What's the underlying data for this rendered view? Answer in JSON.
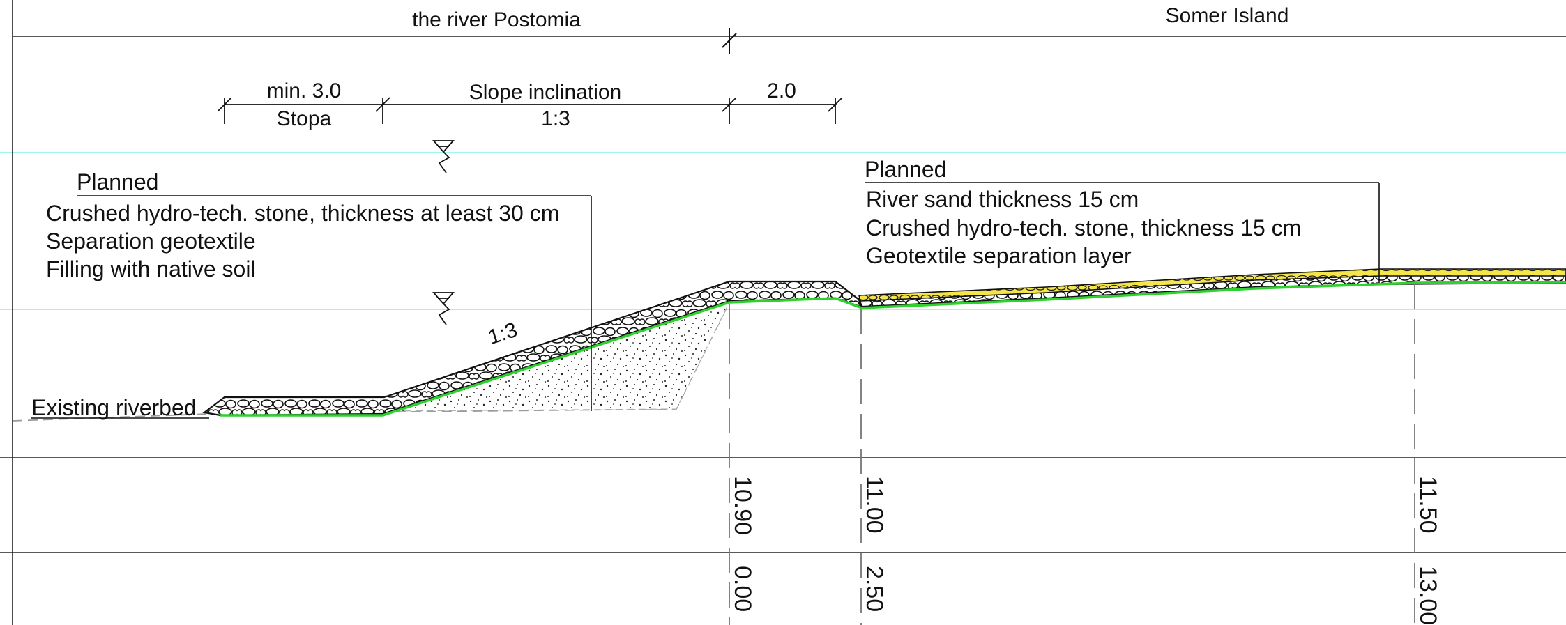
{
  "header": {
    "left_title": "the river Postomia",
    "right_title": "Somer Island"
  },
  "dimensions": {
    "berm_width": "min. 3.0",
    "berm_label": "Stopa",
    "slope_label": "Slope inclination",
    "slope_ratio": "1:3",
    "crest_width": "2.0"
  },
  "slope_annotation": "1:3",
  "left_callout": {
    "title": "Planned",
    "lines": [
      "Crushed hydro-tech. stone, thickness at least 30 cm",
      "Separation geotextile",
      "Filling with native soil"
    ]
  },
  "right_callout": {
    "title": "Planned",
    "lines": [
      "River sand thickness 15 cm",
      "Crushed hydro-tech. stone, thickness 15 cm",
      "Geotextile separation layer"
    ]
  },
  "existing_label": "Existing riverbed",
  "stations": {
    "elevations": [
      "10.90",
      "11.00",
      "11.50"
    ],
    "distances": [
      "0.00",
      "2.50",
      "13.00"
    ]
  },
  "colors": {
    "water_line": "#7ff0ea",
    "geotextile": "#2fd12f",
    "sand": "#f2e23a",
    "line": "#111111"
  }
}
